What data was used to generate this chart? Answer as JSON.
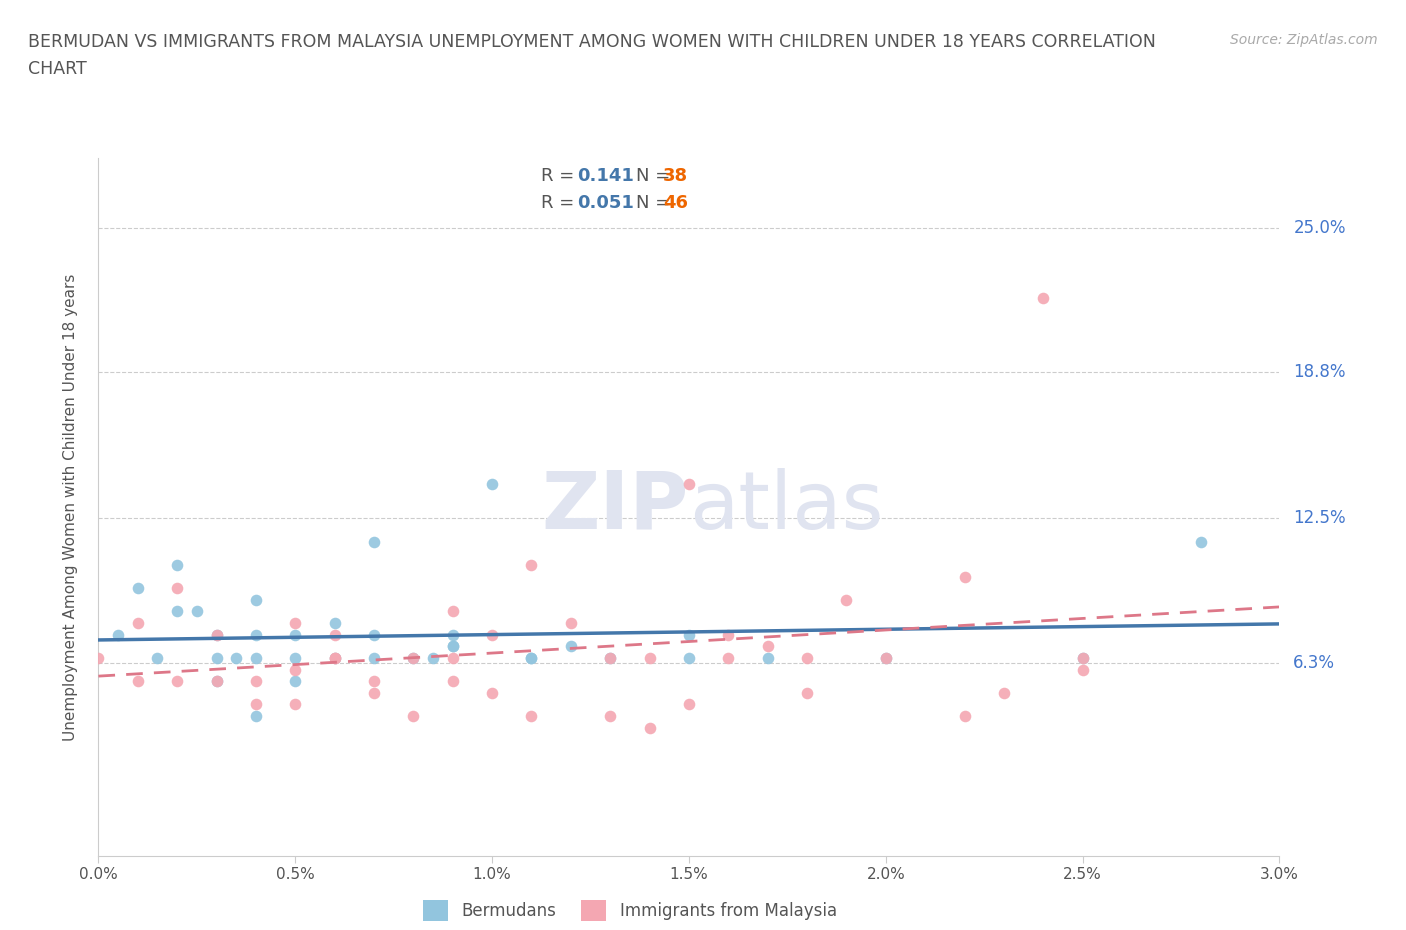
{
  "title_line1": "BERMUDAN VS IMMIGRANTS FROM MALAYSIA UNEMPLOYMENT AMONG WOMEN WITH CHILDREN UNDER 18 YEARS CORRELATION",
  "title_line2": "CHART",
  "source": "Source: ZipAtlas.com",
  "ylabel": "Unemployment Among Women with Children Under 18 years",
  "xlim": [
    0,
    0.03
  ],
  "ylim": [
    -0.02,
    0.28
  ],
  "yticks": [
    0.063,
    0.125,
    0.188,
    0.25
  ],
  "ytick_labels": [
    "6.3%",
    "12.5%",
    "18.8%",
    "25.0%"
  ],
  "xticks": [
    0.0,
    0.005,
    0.01,
    0.015,
    0.02,
    0.025,
    0.03
  ],
  "xtick_labels": [
    "0.0%",
    "0.5%",
    "1.0%",
    "1.5%",
    "2.0%",
    "2.5%",
    "3.0%"
  ],
  "legend_r1": "R = ",
  "legend_rv1": "0.141",
  "legend_n1": "N = ",
  "legend_nv1": "38",
  "legend_r2": "R = ",
  "legend_rv2": "0.051",
  "legend_n2": "N = ",
  "legend_nv2": "46",
  "color_blue": "#92c5de",
  "color_pink": "#f4a7b2",
  "trend_blue": "#4477aa",
  "trend_pink": "#dd7788",
  "text_color": "#555555",
  "right_label_color": "#4477cc",
  "grid_color": "#cccccc",
  "watermark_color": "#e0e4f0",
  "bermudans_x": [
    0.0005,
    0.001,
    0.0015,
    0.002,
    0.002,
    0.0025,
    0.003,
    0.003,
    0.003,
    0.0035,
    0.004,
    0.004,
    0.004,
    0.004,
    0.005,
    0.005,
    0.005,
    0.006,
    0.006,
    0.007,
    0.007,
    0.007,
    0.008,
    0.0085,
    0.009,
    0.009,
    0.009,
    0.01,
    0.011,
    0.011,
    0.012,
    0.013,
    0.015,
    0.015,
    0.017,
    0.02,
    0.025,
    0.028
  ],
  "bermudans_y": [
    0.075,
    0.095,
    0.065,
    0.105,
    0.085,
    0.085,
    0.055,
    0.075,
    0.065,
    0.065,
    0.04,
    0.065,
    0.09,
    0.075,
    0.055,
    0.075,
    0.065,
    0.065,
    0.08,
    0.065,
    0.075,
    0.115,
    0.065,
    0.065,
    0.07,
    0.075,
    0.07,
    0.14,
    0.065,
    0.065,
    0.07,
    0.065,
    0.075,
    0.065,
    0.065,
    0.065,
    0.065,
    0.115
  ],
  "malaysia_x": [
    0.0,
    0.001,
    0.001,
    0.002,
    0.002,
    0.003,
    0.003,
    0.004,
    0.004,
    0.005,
    0.005,
    0.005,
    0.006,
    0.006,
    0.006,
    0.007,
    0.007,
    0.008,
    0.008,
    0.009,
    0.009,
    0.009,
    0.01,
    0.01,
    0.011,
    0.011,
    0.012,
    0.013,
    0.013,
    0.014,
    0.014,
    0.015,
    0.015,
    0.016,
    0.016,
    0.017,
    0.018,
    0.018,
    0.019,
    0.02,
    0.022,
    0.022,
    0.023,
    0.024,
    0.025,
    0.025
  ],
  "malaysia_y": [
    0.065,
    0.08,
    0.055,
    0.095,
    0.055,
    0.055,
    0.075,
    0.055,
    0.045,
    0.08,
    0.06,
    0.045,
    0.065,
    0.075,
    0.065,
    0.055,
    0.05,
    0.065,
    0.04,
    0.085,
    0.065,
    0.055,
    0.075,
    0.05,
    0.105,
    0.04,
    0.08,
    0.065,
    0.04,
    0.065,
    0.035,
    0.14,
    0.045,
    0.065,
    0.075,
    0.07,
    0.05,
    0.065,
    0.09,
    0.065,
    0.1,
    0.04,
    0.05,
    0.22,
    0.065,
    0.06
  ]
}
